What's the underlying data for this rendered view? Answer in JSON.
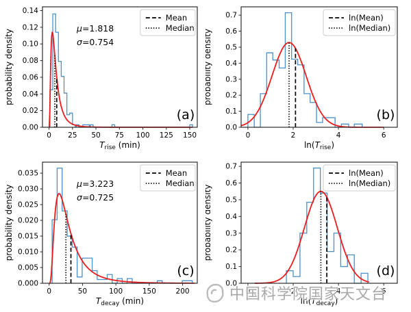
{
  "style": {
    "background": "#ffffff",
    "hist_color": "#4a90c9",
    "curve_color": "#ec1c1c",
    "line_color": "#000000",
    "frame_color": "#2b2b2b",
    "legend_border": "#cccccc"
  },
  "watermark": {
    "text": "中国科学院国家天文台",
    "logo": "cas-swirl-logo"
  },
  "chart_data": [
    {
      "id": "a",
      "type": "histogram+fit",
      "letter": "(a)",
      "ylabel": "probability density",
      "xlabel_text": "T_rise (min)",
      "xlabel_segments": [
        {
          "t": "T",
          "s": "i"
        },
        {
          "t": "rise",
          "s": "sub"
        },
        {
          "t": " (min)",
          "s": "n"
        }
      ],
      "legend": [
        {
          "style": "dashed",
          "label": "Mean"
        },
        {
          "style": "dotted",
          "label": "Median"
        }
      ],
      "annotation": {
        "mu": "μ=1.818",
        "sigma": "σ=0.754"
      },
      "xlim": [
        -7,
        158
      ],
      "ylim": [
        0,
        0.1445
      ],
      "xticks": [
        [
          0,
          "0"
        ],
        [
          25,
          "25"
        ],
        [
          50,
          "50"
        ],
        [
          75,
          "75"
        ],
        [
          100,
          "100"
        ],
        [
          125,
          "125"
        ],
        [
          150,
          "150"
        ]
      ],
      "yticks": [
        [
          0,
          "0.00"
        ],
        [
          0.02,
          "0.02"
        ],
        [
          0.04,
          "0.04"
        ],
        [
          0.06,
          "0.06"
        ],
        [
          0.08,
          "0.08"
        ],
        [
          0.1,
          "0.10"
        ],
        [
          0.12,
          "0.12"
        ],
        [
          0.14,
          "0.14"
        ]
      ],
      "bins": [
        [
          1,
          4,
          0.045
        ],
        [
          4,
          7,
          0.136
        ],
        [
          7,
          10,
          0.114
        ],
        [
          10,
          13,
          0.079
        ],
        [
          13,
          16,
          0.061
        ],
        [
          16,
          19,
          0.041
        ],
        [
          19,
          22,
          0.015
        ],
        [
          22,
          25,
          0.017
        ],
        [
          25,
          28,
          0.003
        ],
        [
          29,
          32,
          0.003
        ],
        [
          36,
          43,
          0.003
        ],
        [
          44,
          47,
          0.003
        ],
        [
          67,
          70,
          0.003
        ],
        [
          150,
          153,
          0.003
        ]
      ],
      "curve": {
        "type": "lognormal",
        "mu": 1.818,
        "sigma": 0.754,
        "xrange": [
          0.2,
          153
        ]
      },
      "lines": [
        {
          "style": "dashed",
          "name": "mean",
          "x": 8.18,
          "ytop": 0.06
        },
        {
          "style": "dotted",
          "name": "median",
          "x": 6.16,
          "ytop": 0.086
        }
      ]
    },
    {
      "id": "b",
      "type": "histogram+fit",
      "letter": "(b)",
      "ylabel": "probability density",
      "xlabel_text": "ln(T_rise)",
      "xlabel_segments": [
        {
          "t": "ln(",
          "s": "n"
        },
        {
          "t": "T",
          "s": "i"
        },
        {
          "t": "rise",
          "s": "sub"
        },
        {
          "t": ")",
          "s": "n"
        }
      ],
      "legend": [
        {
          "style": "dashed",
          "label": "ln(Mean)"
        },
        {
          "style": "dotted",
          "label": "ln(Median)"
        }
      ],
      "annotation": null,
      "xlim": [
        -0.3,
        6.6
      ],
      "ylim": [
        0,
        0.752
      ],
      "xticks": [
        [
          0,
          "0"
        ],
        [
          2,
          "2"
        ],
        [
          4,
          "4"
        ],
        [
          6,
          "6"
        ]
      ],
      "yticks": [
        [
          0,
          "0.0"
        ],
        [
          0.1,
          "0.1"
        ],
        [
          0.2,
          "0.2"
        ],
        [
          0.3,
          "0.3"
        ],
        [
          0.4,
          "0.4"
        ],
        [
          0.5,
          "0.5"
        ],
        [
          0.6,
          "0.6"
        ],
        [
          0.7,
          "0.7"
        ]
      ],
      "bins": [
        [
          0,
          0.28,
          0.08
        ],
        [
          0.55,
          0.83,
          0.21
        ],
        [
          0.83,
          1.1,
          0.465
        ],
        [
          1.1,
          1.38,
          0.42
        ],
        [
          1.38,
          1.65,
          0.37
        ],
        [
          1.65,
          1.93,
          0.715
        ],
        [
          1.93,
          2.2,
          0.425
        ],
        [
          2.2,
          2.48,
          0.39
        ],
        [
          2.48,
          2.75,
          0.21
        ],
        [
          2.75,
          3.03,
          0.155
        ],
        [
          3.03,
          3.3,
          0.03
        ],
        [
          3.3,
          3.85,
          0.06
        ],
        [
          4.13,
          4.45,
          0.02
        ],
        [
          4.7,
          5.05,
          0.02
        ]
      ],
      "curve": {
        "type": "normal",
        "mu": 1.818,
        "sigma": 0.754,
        "xrange": [
          -0.3,
          6.0
        ]
      },
      "lines": [
        {
          "style": "dashed",
          "name": "ln-mean",
          "x": 2.102,
          "ytop": 0.493
        },
        {
          "style": "dotted",
          "name": "ln-median",
          "x": 1.818,
          "ytop": 0.529
        }
      ]
    },
    {
      "id": "c",
      "type": "histogram+fit",
      "letter": "(c)",
      "ylabel": "probability density",
      "xlabel_text": "T_decay (min)",
      "xlabel_segments": [
        {
          "t": "T",
          "s": "i"
        },
        {
          "t": "decay",
          "s": "sub"
        },
        {
          "t": " (min)",
          "s": "n"
        }
      ],
      "legend": [
        {
          "style": "dashed",
          "label": "Mean"
        },
        {
          "style": "dotted",
          "label": "Median"
        }
      ],
      "annotation": {
        "mu": "μ=3.223",
        "sigma": "σ=0.725"
      },
      "xlim": [
        -10,
        222
      ],
      "ylim": [
        0,
        0.0385
      ],
      "xticks": [
        [
          0,
          "0"
        ],
        [
          50,
          "50"
        ],
        [
          100,
          "100"
        ],
        [
          150,
          "150"
        ],
        [
          200,
          "200"
        ]
      ],
      "yticks": [
        [
          0,
          "0.000"
        ],
        [
          0.005,
          "0.005"
        ],
        [
          0.01,
          "0.010"
        ],
        [
          0.015,
          "0.015"
        ],
        [
          0.02,
          "0.020"
        ],
        [
          0.025,
          "0.025"
        ],
        [
          0.03,
          "0.030"
        ],
        [
          0.035,
          "0.035"
        ]
      ],
      "bins": [
        [
          4.5,
          12,
          0.0202
        ],
        [
          12,
          19.5,
          0.0366
        ],
        [
          19.5,
          27,
          0.023
        ],
        [
          27,
          34.5,
          0.015
        ],
        [
          34.5,
          42,
          0.0115
        ],
        [
          42,
          49.5,
          0.002
        ],
        [
          49.5,
          57,
          0.008
        ],
        [
          57,
          64.5,
          0.008
        ],
        [
          64.5,
          72,
          0.004
        ],
        [
          72,
          87,
          0.0012
        ],
        [
          87,
          94.5,
          0.0028
        ],
        [
          102,
          109.5,
          0.0015
        ],
        [
          117,
          124.5,
          0.0015
        ],
        [
          162,
          169.5,
          0.0008
        ],
        [
          199.5,
          214.5,
          0.0008
        ]
      ],
      "curve": {
        "type": "lognormal",
        "mu": 3.223,
        "sigma": 0.725,
        "xrange": [
          0.5,
          218
        ]
      },
      "lines": [
        {
          "style": "dashed",
          "name": "mean",
          "x": 32.65,
          "ytop": 0.0158
        },
        {
          "style": "dotted",
          "name": "median",
          "x": 25.11,
          "ytop": 0.0219
        }
      ]
    },
    {
      "id": "d",
      "type": "histogram+fit",
      "letter": "(d)",
      "ylabel": "probability density",
      "xlabel_text": "ln(T_decay)",
      "xlabel_segments": [
        {
          "t": "ln(",
          "s": "n"
        },
        {
          "t": "T",
          "s": "i"
        },
        {
          "t": "decay",
          "s": "sub"
        },
        {
          "t": ")",
          "s": "n"
        }
      ],
      "legend": [
        {
          "style": "dashed",
          "label": "ln(Mean)"
        },
        {
          "style": "dotted",
          "label": "ln(Median)"
        }
      ],
      "annotation": null,
      "xlim": [
        -0.3,
        6.6
      ],
      "ylim": [
        0,
        0.725
      ],
      "xticks": [
        [
          0,
          "0"
        ],
        [
          2,
          "2"
        ],
        [
          4,
          "4"
        ],
        [
          6,
          "6"
        ]
      ],
      "yticks": [
        [
          0,
          "0.0"
        ],
        [
          0.1,
          "0.1"
        ],
        [
          0.2,
          "0.2"
        ],
        [
          0.3,
          "0.3"
        ],
        [
          0.4,
          "0.4"
        ],
        [
          0.5,
          "0.5"
        ],
        [
          0.6,
          "0.6"
        ],
        [
          0.7,
          "0.7"
        ]
      ],
      "bins": [
        [
          1.7,
          2.0,
          0.075
        ],
        [
          2.0,
          2.3,
          0.04
        ],
        [
          2.3,
          2.6,
          0.3
        ],
        [
          2.6,
          2.9,
          0.485
        ],
        [
          2.9,
          3.2,
          0.69
        ],
        [
          3.2,
          3.5,
          0.54
        ],
        [
          3.5,
          3.8,
          0.19
        ],
        [
          3.8,
          4.1,
          0.3
        ],
        [
          4.1,
          4.4,
          0.1
        ],
        [
          4.4,
          4.7,
          0.17
        ],
        [
          5.0,
          5.3,
          0.06
        ]
      ],
      "curve": {
        "type": "normal",
        "mu": 3.223,
        "sigma": 0.725,
        "xrange": [
          0.3,
          5.35
        ]
      },
      "lines": [
        {
          "style": "dashed",
          "name": "ln-mean",
          "x": 3.486,
          "ytop": 0.515
        },
        {
          "style": "dotted",
          "name": "ln-median",
          "x": 3.223,
          "ytop": 0.55
        }
      ]
    }
  ]
}
